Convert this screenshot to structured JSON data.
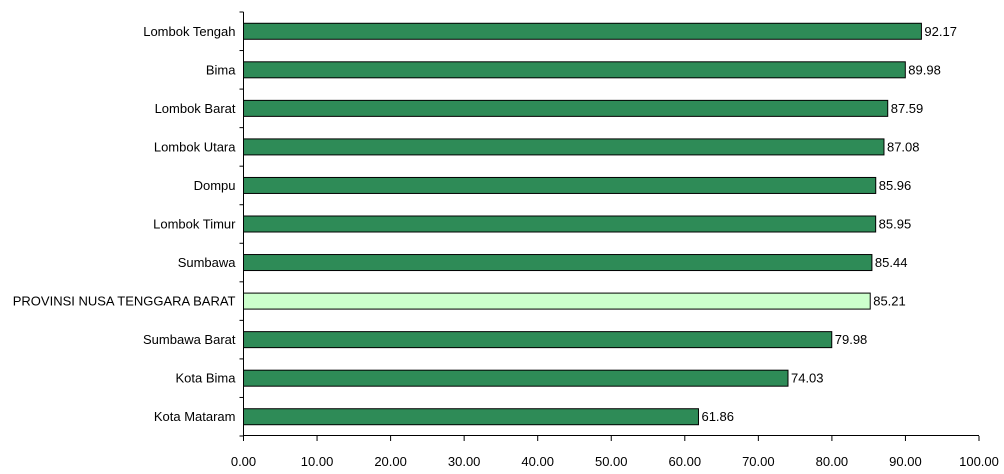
{
  "chart_data": {
    "type": "bar",
    "orientation": "horizontal",
    "title": "",
    "xlabel": "",
    "ylabel": "",
    "xlim": [
      0,
      100
    ],
    "x_ticks": [
      "0.00",
      "10.00",
      "20.00",
      "30.00",
      "40.00",
      "50.00",
      "60.00",
      "70.00",
      "80.00",
      "90.00",
      "100.00"
    ],
    "categories": [
      "Lombok Tengah",
      "Bima",
      "Lombok Barat",
      "Lombok Utara",
      "Dompu",
      "Lombok Timur",
      "Sumbawa",
      "PROVINSI NUSA TENGGARA BARAT",
      "Sumbawa Barat",
      "Kota Bima",
      "Kota Mataram"
    ],
    "values": [
      92.17,
      89.98,
      87.59,
      87.08,
      85.96,
      85.95,
      85.44,
      85.21,
      79.98,
      74.03,
      61.86
    ],
    "value_labels": [
      "92.17",
      "89.98",
      "87.59",
      "87.08",
      "85.96",
      "85.95",
      "85.44",
      "85.21",
      "79.98",
      "74.03",
      "61.86"
    ],
    "highlight_category": "PROVINSI NUSA TENGGARA BARAT",
    "colors": {
      "bar": "#2e8b57",
      "highlight": "#ccffcc",
      "stroke": "#000000"
    },
    "grid": false,
    "legend": "none"
  }
}
